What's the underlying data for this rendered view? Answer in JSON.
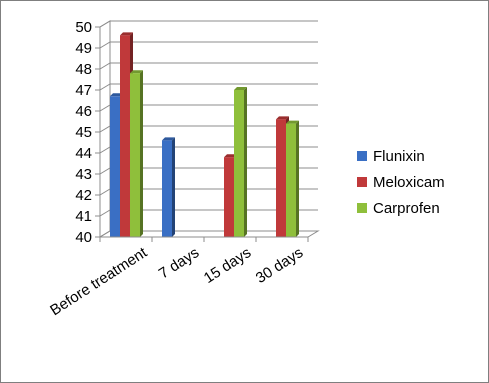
{
  "chart_data": {
    "type": "bar",
    "categories": [
      "Before treatment",
      "7 days",
      "15 days",
      "30 days"
    ],
    "series": [
      {
        "name": "Flunixin",
        "values": [
          46.7,
          44.6,
          null,
          null
        ],
        "color": "#3a6fc4"
      },
      {
        "name": "Meloxicam",
        "values": [
          49.6,
          null,
          43.8,
          45.6
        ],
        "color": "#c0393a"
      },
      {
        "name": "Carprofen",
        "values": [
          47.8,
          null,
          47.0,
          45.4
        ],
        "color": "#8fbf3b"
      }
    ],
    "ylim": [
      40,
      50
    ],
    "yticks": [
      40,
      41,
      42,
      43,
      44,
      45,
      46,
      47,
      48,
      49,
      50
    ],
    "grid": true,
    "legend_position": "right",
    "style": "3d-clustered-column"
  }
}
